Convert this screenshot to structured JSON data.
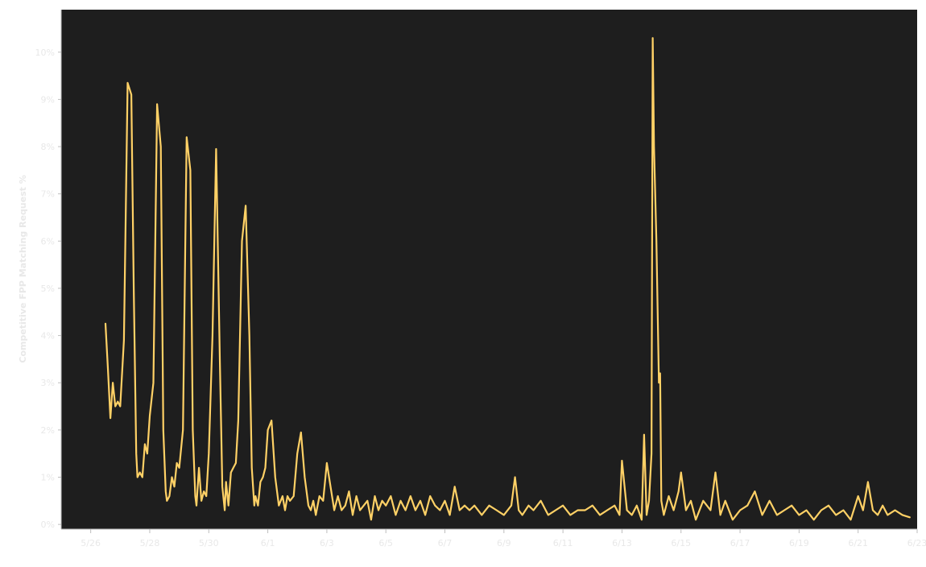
{
  "colors": {
    "background": "#1e1e1e",
    "line": "#ffd166",
    "axis": "#bdbdbd",
    "text": "#e8e8e8"
  },
  "chart_data": {
    "type": "line",
    "title": "",
    "xlabel": "",
    "ylabel": "Competitive FPP Matching Request %",
    "grid": false,
    "legend": "none",
    "x_ticks": [
      "5/26",
      "5/28",
      "5/30",
      "6/1",
      "6/3",
      "6/5",
      "6/7",
      "6/9",
      "6/11",
      "6/13",
      "6/15",
      "6/17",
      "6/19",
      "6/21",
      "6/23"
    ],
    "y_ticks": [
      "0%",
      "1%",
      "2%",
      "3%",
      "4%",
      "5%",
      "6%",
      "7%",
      "8%",
      "9%",
      "10%"
    ],
    "xlim": [
      "2023-05-25",
      "2023-06-23"
    ],
    "ylim": [
      -0.1,
      10.9
    ],
    "series": [
      {
        "x": [
          "2023-05-26 12:00",
          "2023-05-26 14:00",
          "2023-05-26 16:00",
          "2023-05-26 18:00",
          "2023-05-26 20:00",
          "2023-05-26 22:00",
          "2023-05-27 00:00",
          "2023-05-27 03:00",
          "2023-05-27 06:00",
          "2023-05-27 09:00",
          "2023-05-27 11:00",
          "2023-05-27 13:00",
          "2023-05-27 14:00",
          "2023-05-27 16:00",
          "2023-05-27 18:00",
          "2023-05-27 20:00",
          "2023-05-27 22:00",
          "2023-05-28 00:00",
          "2023-05-28 03:00",
          "2023-05-28 06:00",
          "2023-05-28 09:00",
          "2023-05-28 11:00",
          "2023-05-28 13:00",
          "2023-05-28 14:00",
          "2023-05-28 16:00",
          "2023-05-28 18:00",
          "2023-05-28 20:00",
          "2023-05-28 22:00",
          "2023-05-29 00:00",
          "2023-05-29 03:00",
          "2023-05-29 06:00",
          "2023-05-29 09:00",
          "2023-05-29 11:00",
          "2023-05-29 13:00",
          "2023-05-29 14:00",
          "2023-05-29 16:00",
          "2023-05-29 18:00",
          "2023-05-29 20:00",
          "2023-05-29 22:00",
          "2023-05-30 00:00",
          "2023-05-30 03:00",
          "2023-05-30 06:00",
          "2023-05-30 09:00",
          "2023-05-30 11:00",
          "2023-05-30 13:00",
          "2023-05-30 14:00",
          "2023-05-30 16:00",
          "2023-05-30 18:00",
          "2023-05-30 20:00",
          "2023-05-30 22:00",
          "2023-05-31 00:00",
          "2023-05-31 03:00",
          "2023-05-31 06:00",
          "2023-05-31 09:00",
          "2023-05-31 11:00",
          "2023-05-31 13:00",
          "2023-05-31 14:00",
          "2023-05-31 16:00",
          "2023-05-31 18:00",
          "2023-05-31 20:00",
          "2023-05-31 22:00",
          "2023-06-01 00:00",
          "2023-06-01 03:00",
          "2023-06-01 06:00",
          "2023-06-01 09:00",
          "2023-06-01 12:00",
          "2023-06-01 14:00",
          "2023-06-01 16:00",
          "2023-06-01 18:00",
          "2023-06-01 21:00",
          "2023-06-02 00:00",
          "2023-06-02 03:00",
          "2023-06-02 06:00",
          "2023-06-02 09:00",
          "2023-06-02 11:00",
          "2023-06-02 13:00",
          "2023-06-02 15:00",
          "2023-06-02 18:00",
          "2023-06-02 21:00",
          "2023-06-03 00:00",
          "2023-06-03 03:00",
          "2023-06-03 06:00",
          "2023-06-03 09:00",
          "2023-06-03 12:00",
          "2023-06-03 15:00",
          "2023-06-03 18:00",
          "2023-06-03 21:00",
          "2023-06-04 00:00",
          "2023-06-04 03:00",
          "2023-06-04 06:00",
          "2023-06-04 09:00",
          "2023-06-04 12:00",
          "2023-06-04 15:00",
          "2023-06-04 18:00",
          "2023-06-04 21:00",
          "2023-06-05 00:00",
          "2023-06-05 04:00",
          "2023-06-05 08:00",
          "2023-06-05 12:00",
          "2023-06-05 16:00",
          "2023-06-05 20:00",
          "2023-06-06 00:00",
          "2023-06-06 04:00",
          "2023-06-06 08:00",
          "2023-06-06 12:00",
          "2023-06-06 16:00",
          "2023-06-06 20:00",
          "2023-06-07 00:00",
          "2023-06-07 04:00",
          "2023-06-07 08:00",
          "2023-06-07 12:00",
          "2023-06-07 16:00",
          "2023-06-07 20:00",
          "2023-06-08 00:00",
          "2023-06-08 06:00",
          "2023-06-08 12:00",
          "2023-06-08 18:00",
          "2023-06-09 00:00",
          "2023-06-09 06:00",
          "2023-06-09 09:00",
          "2023-06-09 12:00",
          "2023-06-09 15:00",
          "2023-06-09 20:00",
          "2023-06-10 00:00",
          "2023-06-10 06:00",
          "2023-06-10 12:00",
          "2023-06-10 18:00",
          "2023-06-11 00:00",
          "2023-06-11 06:00",
          "2023-06-11 12:00",
          "2023-06-11 18:00",
          "2023-06-12 00:00",
          "2023-06-12 06:00",
          "2023-06-12 12:00",
          "2023-06-12 18:00",
          "2023-06-12 22:00",
          "2023-06-13 00:00",
          "2023-06-13 04:00",
          "2023-06-13 08:00",
          "2023-06-13 12:00",
          "2023-06-13 16:00",
          "2023-06-13 18:00",
          "2023-06-13 20:00",
          "2023-06-13 22:00",
          "2023-06-14 00:00",
          "2023-06-14 01:00",
          "2023-06-14 02:00",
          "2023-06-14 04:00",
          "2023-06-14 06:00",
          "2023-06-14 07:00",
          "2023-06-14 08:00",
          "2023-06-14 10:00",
          "2023-06-14 14:00",
          "2023-06-14 18:00",
          "2023-06-14 22:00",
          "2023-06-15 00:00",
          "2023-06-15 04:00",
          "2023-06-15 08:00",
          "2023-06-15 12:00",
          "2023-06-15 18:00",
          "2023-06-16 00:00",
          "2023-06-16 04:00",
          "2023-06-16 08:00",
          "2023-06-16 12:00",
          "2023-06-16 18:00",
          "2023-06-17 00:00",
          "2023-06-17 06:00",
          "2023-06-17 12:00",
          "2023-06-17 18:00",
          "2023-06-18 00:00",
          "2023-06-18 06:00",
          "2023-06-18 12:00",
          "2023-06-18 18:00",
          "2023-06-19 00:00",
          "2023-06-19 06:00",
          "2023-06-19 12:00",
          "2023-06-19 18:00",
          "2023-06-20 00:00",
          "2023-06-20 06:00",
          "2023-06-20 12:00",
          "2023-06-20 18:00",
          "2023-06-21 00:00",
          "2023-06-21 04:00",
          "2023-06-21 08:00",
          "2023-06-21 12:00",
          "2023-06-21 16:00",
          "2023-06-21 20:00",
          "2023-06-22 00:00",
          "2023-06-22 06:00",
          "2023-06-22 12:00",
          "2023-06-22 18:00"
        ],
        "y": [
          4.25,
          3.3,
          2.25,
          3.0,
          2.5,
          2.6,
          2.5,
          3.9,
          9.35,
          9.1,
          5.0,
          1.5,
          1.0,
          1.1,
          1.0,
          1.7,
          1.5,
          2.3,
          3.0,
          8.9,
          8.0,
          2.0,
          0.7,
          0.5,
          0.6,
          1.0,
          0.8,
          1.3,
          1.2,
          2.0,
          8.2,
          7.5,
          2.0,
          0.6,
          0.4,
          1.2,
          0.5,
          0.7,
          0.6,
          1.5,
          4.0,
          7.95,
          3.5,
          0.8,
          0.3,
          0.9,
          0.4,
          1.1,
          1.2,
          1.3,
          2.2,
          6.0,
          6.75,
          4.0,
          1.2,
          0.4,
          0.6,
          0.4,
          0.9,
          1.0,
          1.2,
          2.0,
          2.2,
          1.0,
          0.4,
          0.6,
          0.3,
          0.6,
          0.5,
          0.6,
          1.5,
          1.95,
          1.0,
          0.4,
          0.3,
          0.5,
          0.2,
          0.6,
          0.5,
          1.3,
          0.8,
          0.3,
          0.6,
          0.3,
          0.4,
          0.7,
          0.2,
          0.6,
          0.3,
          0.4,
          0.5,
          0.1,
          0.6,
          0.3,
          0.5,
          0.4,
          0.6,
          0.2,
          0.5,
          0.3,
          0.6,
          0.3,
          0.5,
          0.2,
          0.6,
          0.4,
          0.3,
          0.5,
          0.2,
          0.8,
          0.3,
          0.4,
          0.3,
          0.4,
          0.2,
          0.4,
          0.3,
          0.2,
          0.4,
          1.0,
          0.3,
          0.2,
          0.4,
          0.3,
          0.5,
          0.2,
          0.3,
          0.4,
          0.2,
          0.3,
          0.3,
          0.4,
          0.2,
          0.3,
          0.4,
          0.2,
          1.35,
          0.3,
          0.2,
          0.4,
          0.1,
          1.9,
          0.2,
          0.5,
          1.5,
          10.3,
          8.0,
          6.0,
          3.0,
          3.2,
          0.5,
          0.2,
          0.6,
          0.3,
          0.7,
          1.1,
          0.3,
          0.5,
          0.1,
          0.5,
          0.3,
          1.1,
          0.2,
          0.5,
          0.1,
          0.3,
          0.4,
          0.7,
          0.2,
          0.5,
          0.2,
          0.3,
          0.4,
          0.2,
          0.3,
          0.1,
          0.3,
          0.4,
          0.2,
          0.3,
          0.1,
          0.6,
          0.3,
          0.9,
          0.3,
          0.2,
          0.4,
          0.2,
          0.3,
          0.2,
          0.15
        ]
      }
    ]
  }
}
